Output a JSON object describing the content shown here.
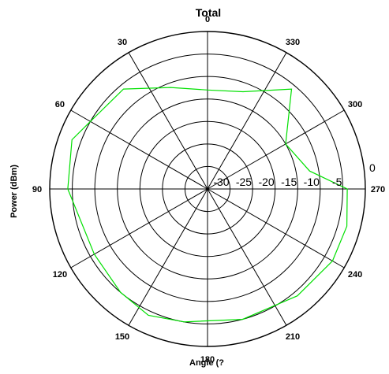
{
  "chart_data": {
    "type": "polar-line",
    "title": "Total",
    "xlabel": "Angle (?",
    "ylabel": "Power (dBm)",
    "angle_direction": "counterclockwise",
    "angle_zero": "top",
    "angle_ticks": [
      "0",
      "30",
      "60",
      "90",
      "120",
      "150",
      "180",
      "210",
      "240",
      "270",
      "300",
      "330"
    ],
    "radial_ticks": [
      "-30",
      "-25",
      "-20",
      "-15",
      "-10",
      "-5",
      "0"
    ],
    "rlim": [
      -35,
      0
    ],
    "grid": true,
    "series": [
      {
        "color": "#00e000",
        "points": [
          {
            "angle": 0,
            "power": -13
          },
          {
            "angle": 20,
            "power": -11
          },
          {
            "angle": 40,
            "power": -6
          },
          {
            "angle": 60,
            "power": -5
          },
          {
            "angle": 70,
            "power": -3
          },
          {
            "angle": 90,
            "power": -4
          },
          {
            "angle": 120,
            "power": -6
          },
          {
            "angle": 140,
            "power": -5
          },
          {
            "angle": 155,
            "power": -4
          },
          {
            "angle": 170,
            "power": -5
          },
          {
            "angle": 195,
            "power": -5
          },
          {
            "angle": 220,
            "power": -4
          },
          {
            "angle": 240,
            "power": -3
          },
          {
            "angle": 255,
            "power": -3
          },
          {
            "angle": 270,
            "power": -4
          },
          {
            "angle": 280,
            "power": -12
          },
          {
            "angle": 300,
            "power": -15
          },
          {
            "angle": 320,
            "power": -6
          },
          {
            "angle": 340,
            "power": -12
          },
          {
            "angle": 360,
            "power": -13
          }
        ]
      }
    ]
  }
}
